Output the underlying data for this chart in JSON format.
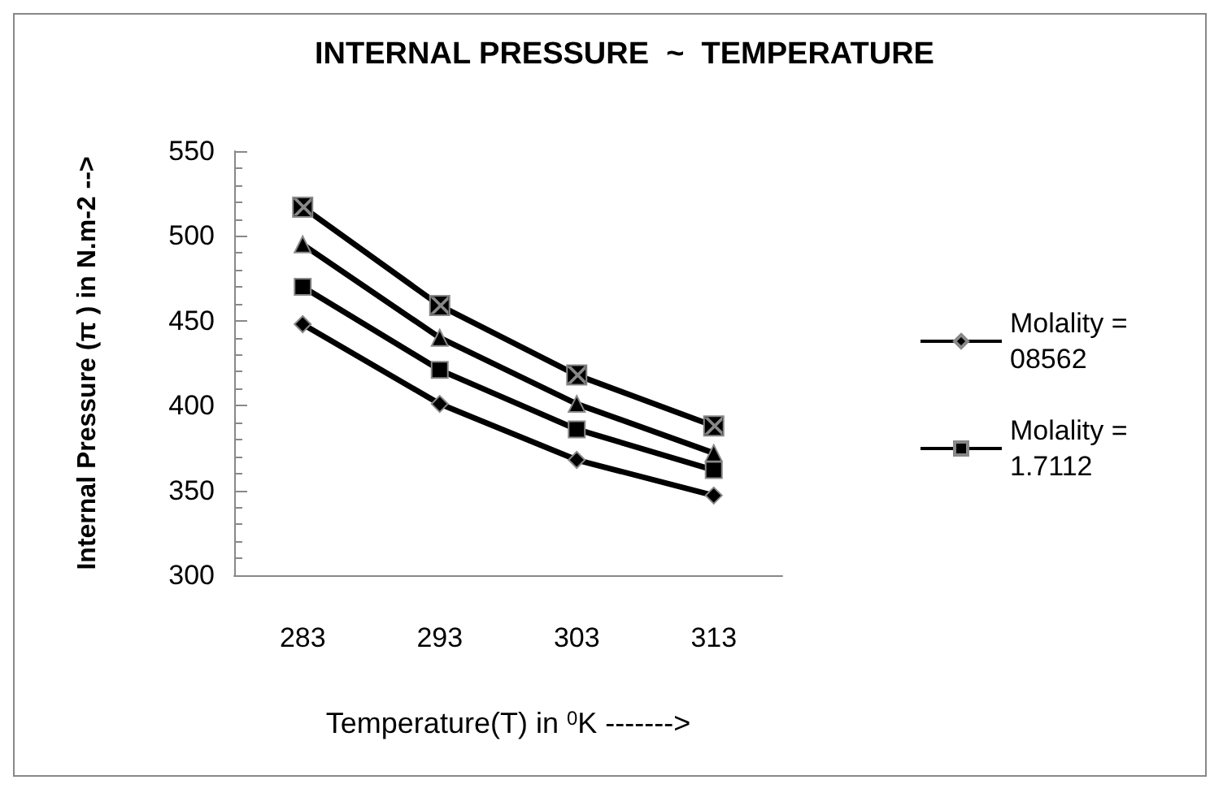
{
  "chart_data": {
    "type": "line",
    "title": "INTERNAL PRESSURE  ~  TEMPERATURE",
    "xlabel": "Temperature(T) in $^{0}$K ------->",
    "ylabel": "Internal Pressure (π ) in N.m-2 -->",
    "categories": [
      "283",
      "293",
      "303",
      "313"
    ],
    "series": [
      {
        "name": "Molality = 08562",
        "color": "#000000",
        "marker": "diamond",
        "values": [
          448,
          401,
          368,
          347
        ]
      },
      {
        "name": "Molality = 1.7112",
        "color": "#000000",
        "marker": "square",
        "values": [
          470,
          421,
          386,
          362
        ]
      },
      {
        "color": "#000000",
        "marker": "triangle",
        "values": [
          495,
          440,
          401,
          372
        ]
      },
      {
        "color": "#000000",
        "marker": "cross",
        "values": [
          517,
          459,
          418,
          388
        ]
      }
    ],
    "ylim": [
      300,
      550
    ],
    "yticks": [
      300,
      350,
      400,
      450,
      500,
      550
    ],
    "grid": false,
    "legend": "right",
    "line_style": "solid"
  }
}
